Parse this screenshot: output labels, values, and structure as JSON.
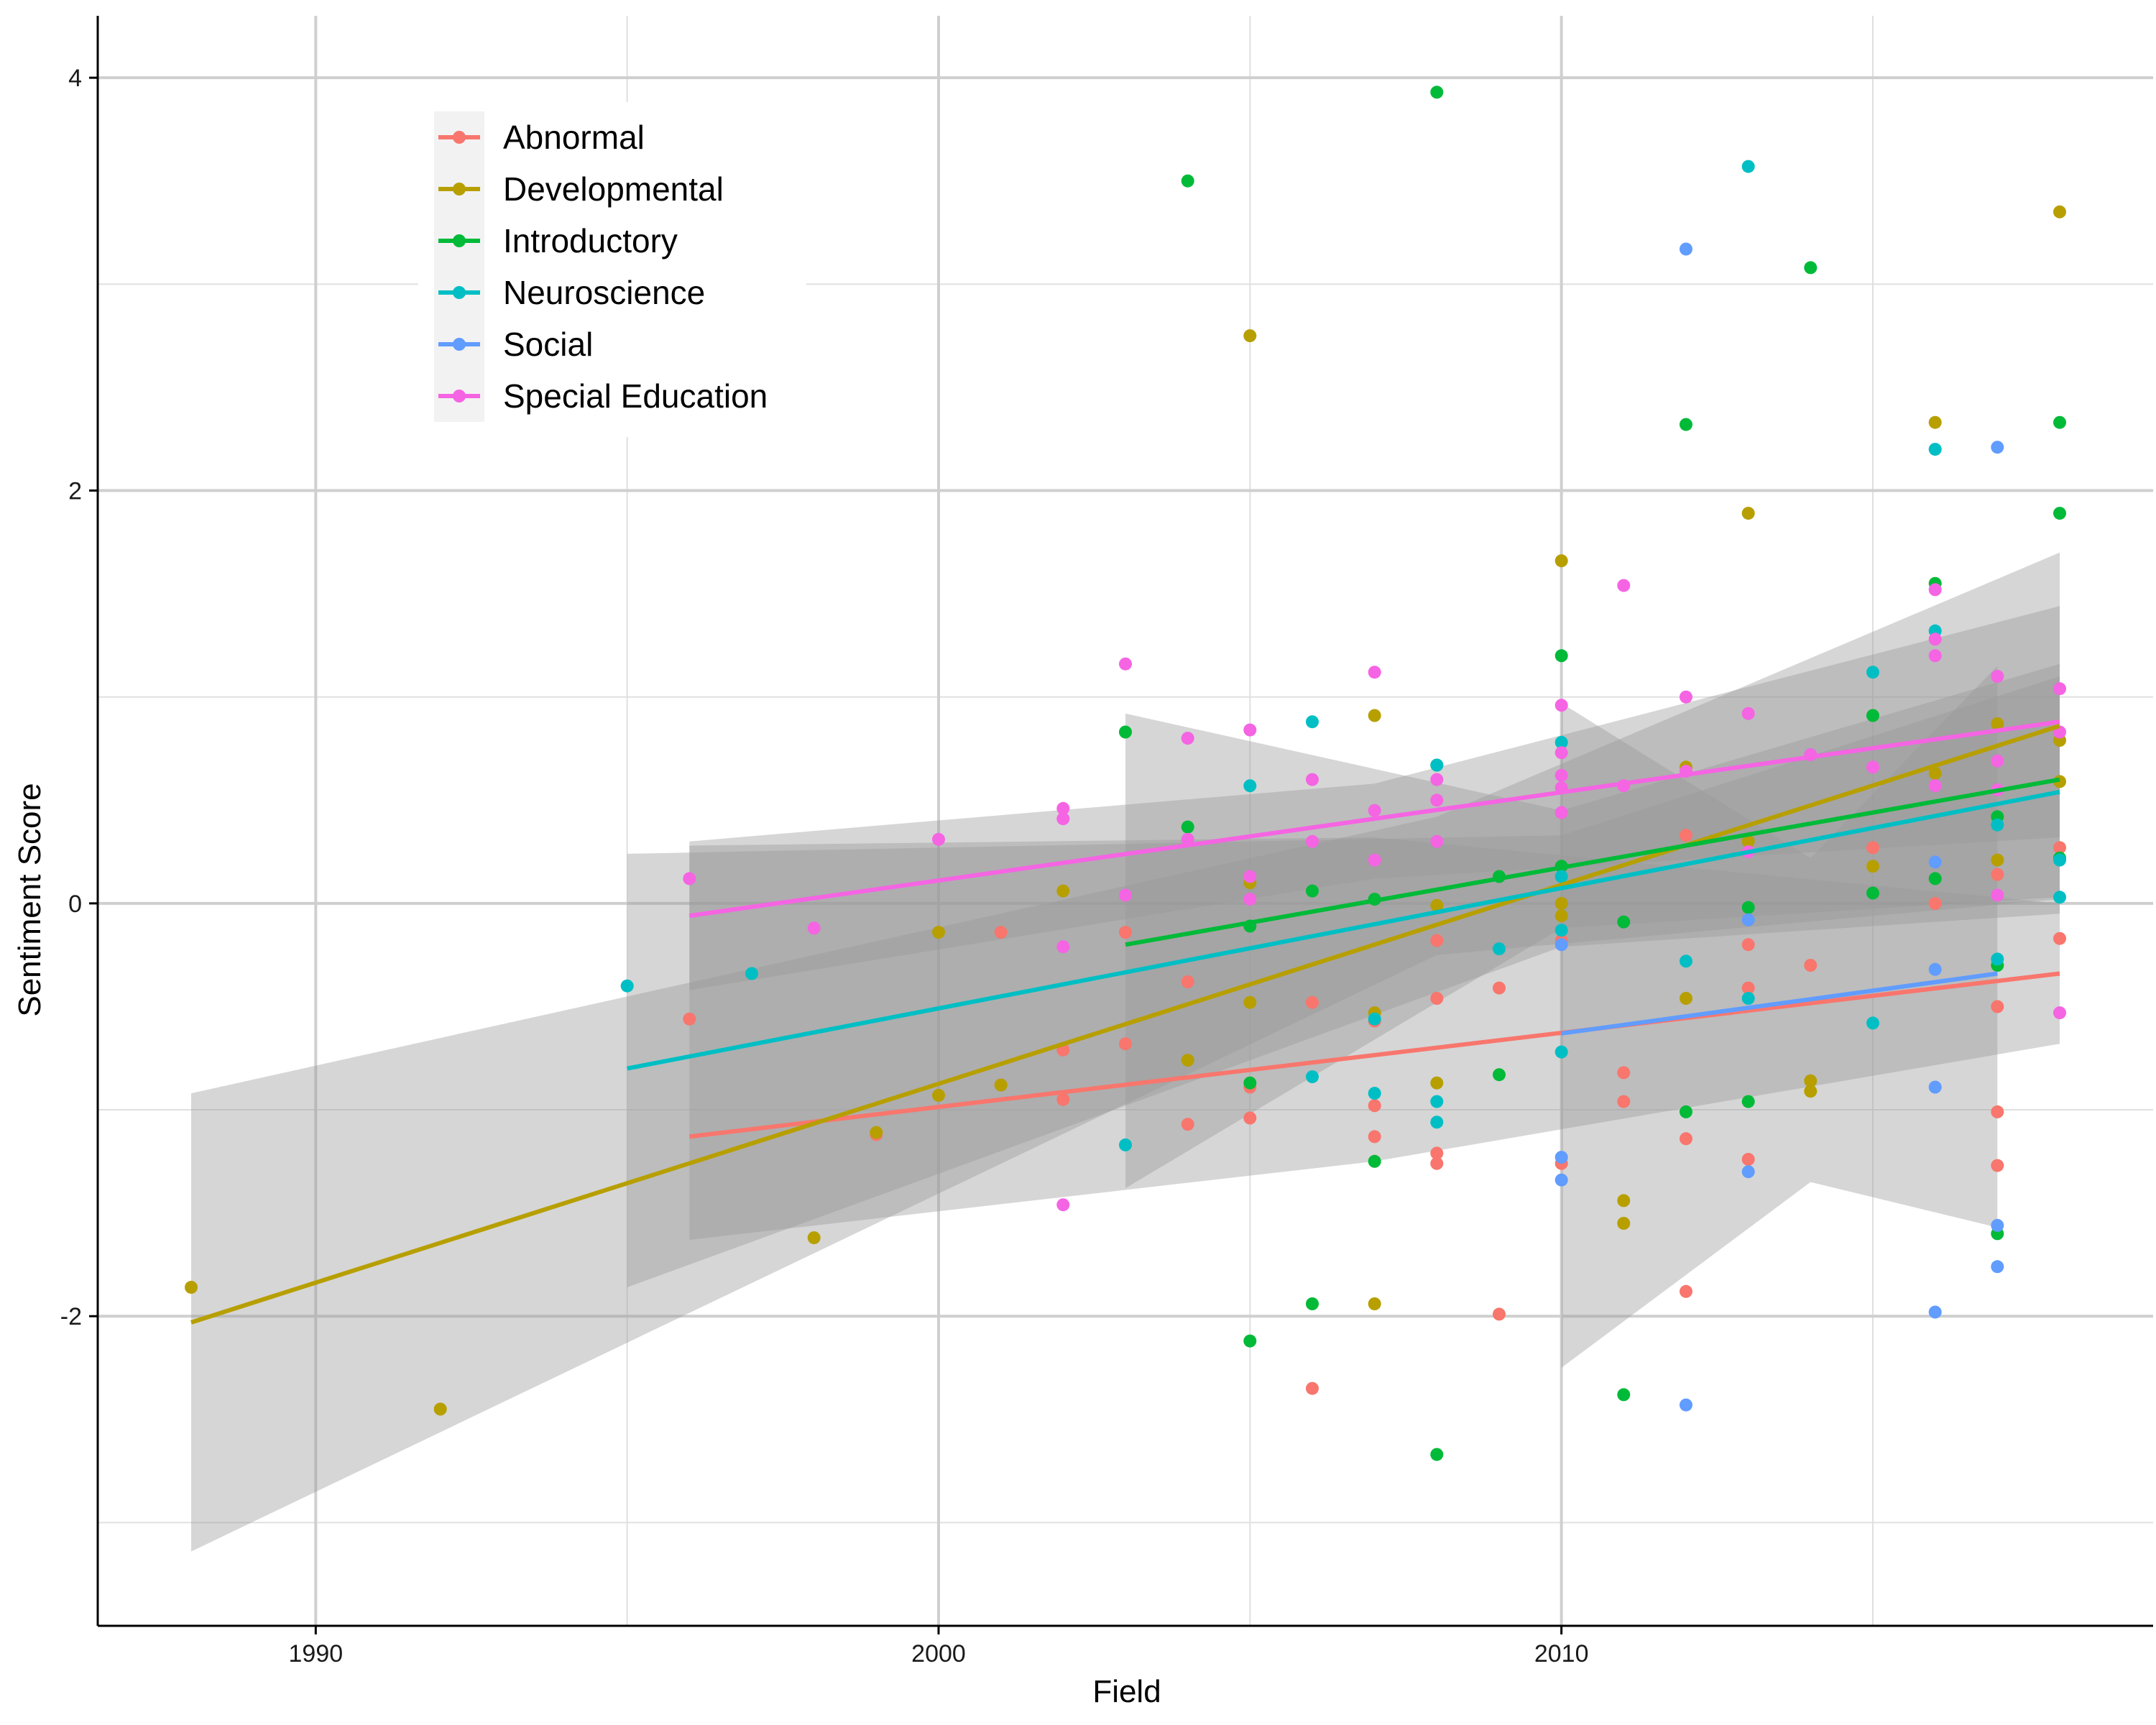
{
  "chart_data": {
    "type": "scatter",
    "title": "",
    "xlabel": "Field",
    "ylabel": "Sentiment Score",
    "xlim": [
      1986.5,
      2019.5
    ],
    "ylim": [
      -3.5,
      4.3
    ],
    "x_ticks": [
      1990,
      2000,
      2010
    ],
    "y_ticks": [
      -2,
      0,
      2,
      4
    ],
    "grid": true,
    "legend_position": "top-left",
    "series": [
      {
        "name": "Abnormal",
        "color": "#F8766D",
        "trend": {
          "x": [
            1996,
            2018
          ],
          "y": [
            -1.13,
            -0.34
          ]
        },
        "band": {
          "x": [
            1996,
            2007,
            2018
          ],
          "upper": [
            0.28,
            0.32,
            0.0
          ],
          "lower": [
            -1.63,
            -1.25,
            -0.68
          ]
        },
        "points": [
          [
            1996,
            -0.56
          ],
          [
            1999,
            -1.12
          ],
          [
            2001,
            -0.14
          ],
          [
            2001,
            -0.88
          ],
          [
            2002,
            -0.71
          ],
          [
            2002,
            -0.95
          ],
          [
            2003,
            -0.68
          ],
          [
            2003,
            -0.14
          ],
          [
            2004,
            -0.38
          ],
          [
            2004,
            -1.07
          ],
          [
            2005,
            -1.04
          ],
          [
            2005,
            -0.89
          ],
          [
            2006,
            -2.35
          ],
          [
            2006,
            -0.48
          ],
          [
            2007,
            -0.98
          ],
          [
            2007,
            -1.13
          ],
          [
            2007,
            -0.57
          ],
          [
            2008,
            -1.26
          ],
          [
            2008,
            -1.21
          ],
          [
            2008,
            -0.46
          ],
          [
            2008,
            -0.18
          ],
          [
            2009,
            -0.41
          ],
          [
            2009,
            -1.99
          ],
          [
            2010,
            -1.26
          ],
          [
            2010,
            -0.18
          ],
          [
            2011,
            -0.82
          ],
          [
            2011,
            -0.96
          ],
          [
            2012,
            -1.14
          ],
          [
            2012,
            -1.88
          ],
          [
            2012,
            0.33
          ],
          [
            2013,
            -0.41
          ],
          [
            2013,
            -1.24
          ],
          [
            2013,
            -0.2
          ],
          [
            2014,
            -0.3
          ],
          [
            2015,
            0.27
          ],
          [
            2016,
            0.0
          ],
          [
            2017,
            -0.5
          ],
          [
            2017,
            -1.01
          ],
          [
            2017,
            -1.27
          ],
          [
            2017,
            0.14
          ],
          [
            2018,
            -0.17
          ],
          [
            2018,
            0.27
          ]
        ]
      },
      {
        "name": "Developmental",
        "color": "#B79F00",
        "trend": {
          "x": [
            1988,
            2018
          ],
          "y": [
            -2.03,
            0.86
          ]
        },
        "band": {
          "x": [
            1988,
            2008,
            2018
          ],
          "upper": [
            -0.92,
            0.42,
            1.7
          ],
          "lower": [
            -3.14,
            -0.25,
            0.02
          ]
        },
        "points": [
          [
            1988,
            -1.86
          ],
          [
            1992,
            -2.45
          ],
          [
            1998,
            -1.62
          ],
          [
            1999,
            -1.11
          ],
          [
            2000,
            -0.14
          ],
          [
            2000,
            -0.93
          ],
          [
            2001,
            -0.88
          ],
          [
            2002,
            0.06
          ],
          [
            2004,
            -0.76
          ],
          [
            2005,
            2.75
          ],
          [
            2005,
            0.1
          ],
          [
            2005,
            -0.48
          ],
          [
            2007,
            0.91
          ],
          [
            2007,
            -1.94
          ],
          [
            2007,
            -0.53
          ],
          [
            2008,
            -0.01
          ],
          [
            2008,
            -0.87
          ],
          [
            2010,
            1.66
          ],
          [
            2010,
            -0.06
          ],
          [
            2010,
            0.0
          ],
          [
            2011,
            -1.44
          ],
          [
            2011,
            -1.55
          ],
          [
            2012,
            0.66
          ],
          [
            2012,
            -0.46
          ],
          [
            2013,
            1.89
          ],
          [
            2013,
            0.3
          ],
          [
            2014,
            -0.86
          ],
          [
            2014,
            -0.91
          ],
          [
            2015,
            0.18
          ],
          [
            2016,
            2.33
          ],
          [
            2016,
            0.63
          ],
          [
            2017,
            0.87
          ],
          [
            2017,
            0.21
          ],
          [
            2018,
            3.35
          ],
          [
            2018,
            0.79
          ],
          [
            2018,
            0.59
          ]
        ]
      },
      {
        "name": "Introductory",
        "color": "#00BA38",
        "trend": {
          "x": [
            2003,
            2018
          ],
          "y": [
            -0.2,
            0.6
          ]
        },
        "band": {
          "x": [
            2003,
            2010,
            2018
          ],
          "upper": [
            0.92,
            0.45,
            1.16
          ],
          "lower": [
            -1.38,
            -0.12,
            0.03
          ]
        },
        "points": [
          [
            2003,
            0.83
          ],
          [
            2004,
            3.5
          ],
          [
            2004,
            0.37
          ],
          [
            2005,
            -2.12
          ],
          [
            2005,
            -0.87
          ],
          [
            2005,
            -0.11
          ],
          [
            2006,
            -1.94
          ],
          [
            2006,
            0.06
          ],
          [
            2007,
            -1.25
          ],
          [
            2007,
            0.02
          ],
          [
            2008,
            3.93
          ],
          [
            2008,
            -2.67
          ],
          [
            2008,
            0.67
          ],
          [
            2009,
            -0.83
          ],
          [
            2009,
            0.13
          ],
          [
            2010,
            1.2
          ],
          [
            2010,
            0.18
          ],
          [
            2011,
            -2.38
          ],
          [
            2011,
            -0.09
          ],
          [
            2012,
            2.32
          ],
          [
            2012,
            -1.01
          ],
          [
            2013,
            -0.96
          ],
          [
            2013,
            -0.02
          ],
          [
            2014,
            3.08
          ],
          [
            2015,
            0.91
          ],
          [
            2015,
            0.05
          ],
          [
            2016,
            1.55
          ],
          [
            2016,
            0.12
          ],
          [
            2017,
            -1.6
          ],
          [
            2017,
            0.42
          ],
          [
            2017,
            -0.3
          ],
          [
            2018,
            2.33
          ],
          [
            2018,
            1.89
          ],
          [
            2018,
            0.22
          ]
        ]
      },
      {
        "name": "Neuroscience",
        "color": "#00BFC4",
        "trend": {
          "x": [
            1995,
            2018
          ],
          "y": [
            -0.8,
            0.54
          ]
        },
        "band": {
          "x": [
            1995,
            2010,
            2018
          ],
          "upper": [
            0.24,
            0.33,
            1.1
          ],
          "lower": [
            -1.86,
            -0.21,
            -0.05
          ]
        },
        "points": [
          [
            1995,
            -0.4
          ],
          [
            1997,
            -0.34
          ],
          [
            2003,
            -1.17
          ],
          [
            2005,
            0.57
          ],
          [
            2006,
            0.88
          ],
          [
            2006,
            -0.84
          ],
          [
            2007,
            -0.92
          ],
          [
            2007,
            -0.56
          ],
          [
            2008,
            0.67
          ],
          [
            2008,
            -0.96
          ],
          [
            2008,
            -1.06
          ],
          [
            2009,
            -0.22
          ],
          [
            2010,
            0.78
          ],
          [
            2010,
            0.13
          ],
          [
            2010,
            -0.13
          ],
          [
            2010,
            -0.72
          ],
          [
            2012,
            -0.28
          ],
          [
            2013,
            3.57
          ],
          [
            2013,
            -0.46
          ],
          [
            2015,
            1.12
          ],
          [
            2015,
            -0.58
          ],
          [
            2016,
            2.2
          ],
          [
            2016,
            1.32
          ],
          [
            2017,
            0.38
          ],
          [
            2017,
            -0.27
          ],
          [
            2018,
            0.21
          ],
          [
            2018,
            0.03
          ]
        ]
      },
      {
        "name": "Social",
        "color": "#619CFF",
        "trend": {
          "x": [
            2010,
            2017
          ],
          "y": [
            -0.63,
            -0.34
          ]
        },
        "band": {
          "x": [
            2010,
            2014,
            2017
          ],
          "upper": [
            0.97,
            0.22,
            1.15
          ],
          "lower": [
            -2.25,
            -1.35,
            -1.57
          ]
        },
        "points": [
          [
            2010,
            -1.23
          ],
          [
            2010,
            -1.34
          ],
          [
            2010,
            -0.2
          ],
          [
            2012,
            3.17
          ],
          [
            2012,
            -2.43
          ],
          [
            2013,
            -1.3
          ],
          [
            2013,
            -0.08
          ],
          [
            2014,
            0.72
          ],
          [
            2016,
            -0.89
          ],
          [
            2016,
            -0.32
          ],
          [
            2016,
            -1.98
          ],
          [
            2016,
            0.2
          ],
          [
            2017,
            2.21
          ],
          [
            2017,
            -1.76
          ],
          [
            2017,
            -1.56
          ]
        ]
      },
      {
        "name": "Special Education",
        "color": "#F564E3",
        "trend": {
          "x": [
            1996,
            2018
          ],
          "y": [
            -0.06,
            0.88
          ]
        },
        "band": {
          "x": [
            1996,
            2007,
            2018
          ],
          "upper": [
            0.3,
            0.58,
            1.44
          ],
          "lower": [
            -0.42,
            0.12,
            0.32
          ]
        },
        "points": [
          [
            1996,
            0.12
          ],
          [
            1998,
            -0.12
          ],
          [
            2000,
            0.31
          ],
          [
            2002,
            0.46
          ],
          [
            2002,
            0.41
          ],
          [
            2002,
            -0.21
          ],
          [
            2002,
            -1.46
          ],
          [
            2003,
            1.16
          ],
          [
            2003,
            0.04
          ],
          [
            2004,
            0.8
          ],
          [
            2004,
            0.31
          ],
          [
            2005,
            0.84
          ],
          [
            2005,
            0.13
          ],
          [
            2005,
            0.02
          ],
          [
            2006,
            0.6
          ],
          [
            2006,
            0.3
          ],
          [
            2007,
            1.12
          ],
          [
            2007,
            0.45
          ],
          [
            2007,
            0.21
          ],
          [
            2008,
            0.6
          ],
          [
            2008,
            0.5
          ],
          [
            2008,
            0.3
          ],
          [
            2010,
            0.96
          ],
          [
            2010,
            0.73
          ],
          [
            2010,
            0.62
          ],
          [
            2010,
            0.56
          ],
          [
            2010,
            0.44
          ],
          [
            2011,
            1.54
          ],
          [
            2011,
            0.57
          ],
          [
            2012,
            1.0
          ],
          [
            2012,
            0.64
          ],
          [
            2013,
            0.92
          ],
          [
            2013,
            0.25
          ],
          [
            2014,
            0.72
          ],
          [
            2015,
            0.66
          ],
          [
            2016,
            1.52
          ],
          [
            2016,
            1.28
          ],
          [
            2016,
            1.2
          ],
          [
            2016,
            0.57
          ],
          [
            2017,
            1.1
          ],
          [
            2017,
            0.69
          ],
          [
            2017,
            0.55
          ],
          [
            2017,
            0.04
          ],
          [
            2018,
            1.04
          ],
          [
            2018,
            0.83
          ],
          [
            2018,
            -0.53
          ]
        ]
      }
    ]
  }
}
